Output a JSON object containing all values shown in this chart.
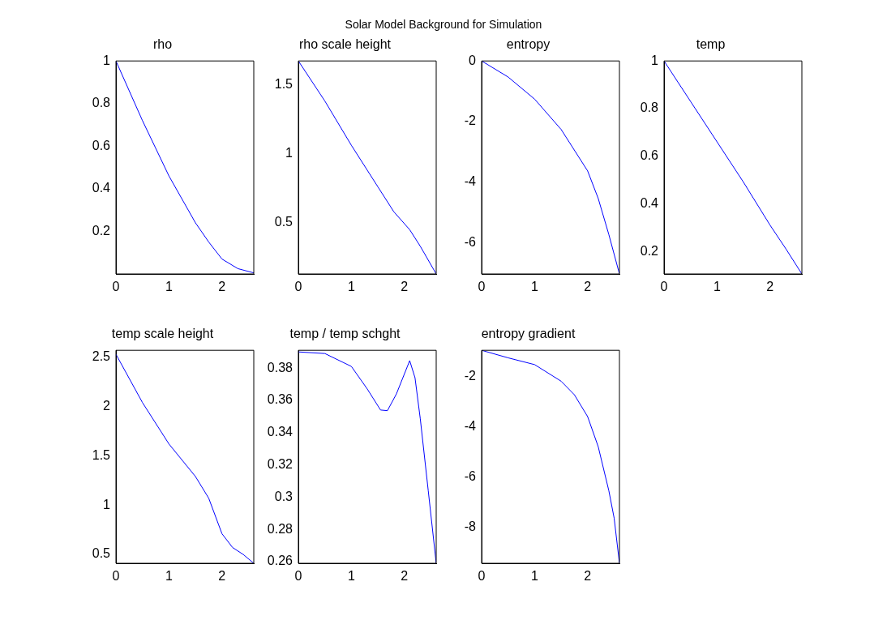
{
  "chart_data": [
    {
      "type": "line",
      "title": "rho",
      "annotations": [
        "Solar Model Background for Simulation"
      ],
      "x": [
        0,
        0.25,
        0.5,
        0.75,
        1,
        1.25,
        1.5,
        1.75,
        2,
        2.3,
        2.6
      ],
      "series": [
        {
          "color": "#0000ff",
          "values": [
            1,
            0.86,
            0.72,
            0.59,
            0.46,
            0.35,
            0.24,
            0.15,
            0.07,
            0.025,
            0.005
          ]
        }
      ],
      "xlim": [
        0,
        2.6
      ],
      "xticks": [
        0,
        1,
        2
      ],
      "ylim": [
        0,
        1
      ],
      "yticks": [
        0.2,
        0.4,
        0.6,
        0.8,
        1
      ],
      "legend": false
    },
    {
      "type": "line",
      "title": "rho scale height",
      "x": [
        0,
        0.5,
        1,
        1.5,
        1.8,
        2.1,
        2.3,
        2.6
      ],
      "series": [
        {
          "color": "#0000ff",
          "values": [
            1.67,
            1.38,
            1.06,
            0.76,
            0.58,
            0.45,
            0.33,
            0.13
          ]
        }
      ],
      "xlim": [
        0,
        2.6
      ],
      "xticks": [
        0,
        1,
        2
      ],
      "ylim": [
        0.13,
        1.67
      ],
      "yticks": [
        0.5,
        1,
        1.5
      ],
      "legend": false
    },
    {
      "type": "line",
      "title": "entropy",
      "x": [
        0,
        0.5,
        1,
        1.5,
        2,
        2.2,
        2.4,
        2.6
      ],
      "series": [
        {
          "color": "#0000ff",
          "values": [
            0,
            -0.53,
            -1.26,
            -2.26,
            -3.63,
            -4.54,
            -5.73,
            -7.03
          ]
        }
      ],
      "xlim": [
        0,
        2.6
      ],
      "xticks": [
        0,
        1,
        2
      ],
      "ylim": [
        -7.03,
        0
      ],
      "yticks": [
        -6,
        -4,
        -2,
        0
      ],
      "legend": false
    },
    {
      "type": "line",
      "title": "temp",
      "x": [
        0,
        0.5,
        1,
        1.5,
        2,
        2.3,
        2.6
      ],
      "series": [
        {
          "color": "#0000ff",
          "values": [
            1,
            0.83,
            0.66,
            0.49,
            0.31,
            0.21,
            0.105
          ]
        }
      ],
      "xlim": [
        0,
        2.6
      ],
      "xticks": [
        0,
        1,
        2
      ],
      "ylim": [
        0.105,
        1
      ],
      "yticks": [
        0.2,
        0.4,
        0.6,
        0.8,
        1
      ],
      "legend": false
    },
    {
      "type": "line",
      "title": "temp scale height",
      "x": [
        0,
        0.5,
        1,
        1.5,
        1.75,
        2,
        2.2,
        2.4,
        2.6
      ],
      "series": [
        {
          "color": "#0000ff",
          "values": [
            2.53,
            2.04,
            1.62,
            1.29,
            1.07,
            0.71,
            0.57,
            0.5,
            0.41
          ]
        }
      ],
      "xlim": [
        0,
        2.6
      ],
      "xticks": [
        0,
        1,
        2
      ],
      "ylim": [
        0.41,
        2.57
      ],
      "yticks": [
        0.5,
        1,
        1.5,
        2,
        2.5
      ],
      "legend": false
    },
    {
      "type": "line",
      "title": "temp / temp schght",
      "x": [
        0,
        0.5,
        1,
        1.3,
        1.55,
        1.68,
        1.85,
        2.1,
        2.2,
        2.3,
        2.45,
        2.6
      ],
      "series": [
        {
          "color": "#0000ff",
          "values": [
            0.39,
            0.389,
            0.381,
            0.367,
            0.354,
            0.3536,
            0.364,
            0.3846,
            0.374,
            0.3485,
            0.304,
            0.259
          ]
        }
      ],
      "xlim": [
        0,
        2.6
      ],
      "xticks": [
        0,
        1,
        2
      ],
      "ylim": [
        0.259,
        0.391
      ],
      "yticks": [
        0.26,
        0.28,
        0.3,
        0.32,
        0.34,
        0.36,
        0.38
      ],
      "legend": false
    },
    {
      "type": "line",
      "title": "entropy gradient",
      "x": [
        0,
        0.5,
        1,
        1.5,
        1.75,
        2,
        2.2,
        2.4,
        2.5,
        2.6
      ],
      "series": [
        {
          "color": "#0000ff",
          "values": [
            -0.96,
            -1.26,
            -1.53,
            -2.19,
            -2.73,
            -3.6,
            -4.8,
            -6.55,
            -7.64,
            -9.44
          ]
        }
      ],
      "xlim": [
        0,
        2.6
      ],
      "xticks": [
        0,
        1,
        2
      ],
      "ylim": [
        -9.44,
        -0.96
      ],
      "yticks": [
        -8,
        -6,
        -4,
        -2
      ],
      "legend": false
    }
  ]
}
